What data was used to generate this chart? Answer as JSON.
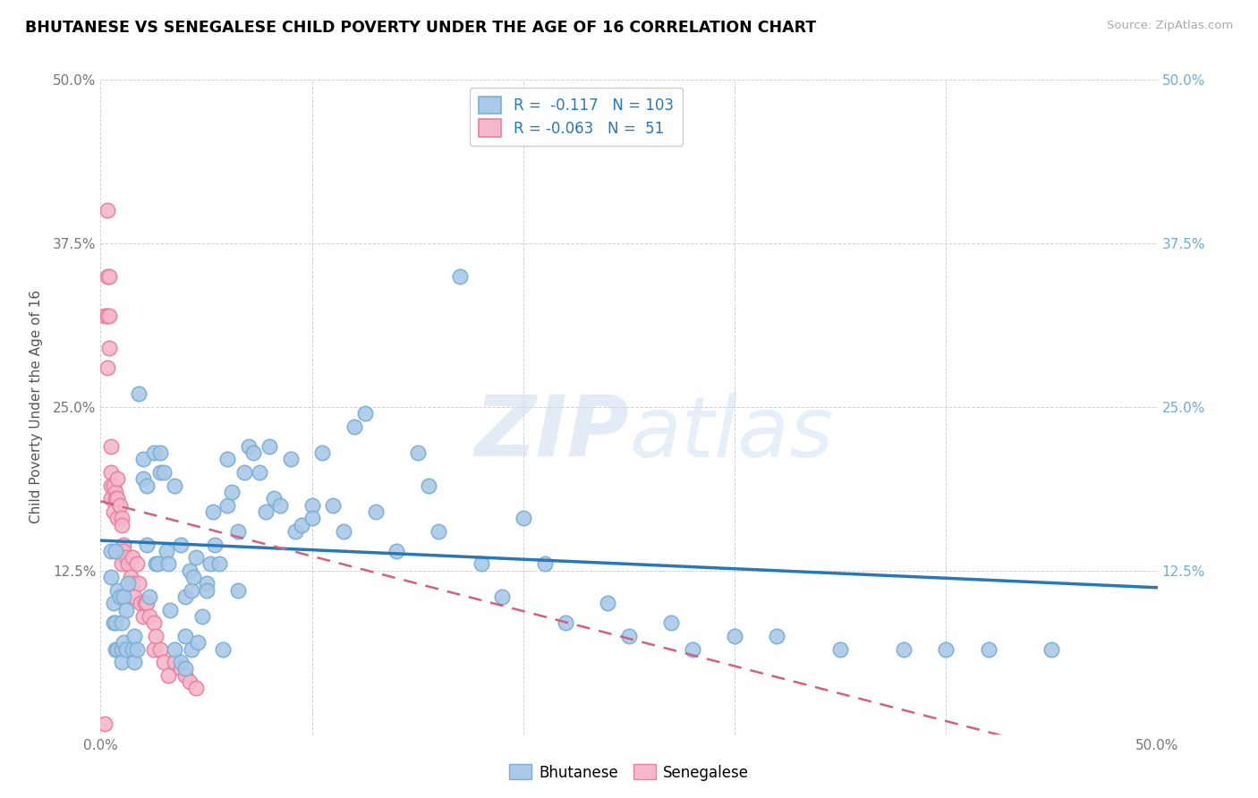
{
  "title": "BHUTANESE VS SENEGALESE CHILD POVERTY UNDER THE AGE OF 16 CORRELATION CHART",
  "source": "Source: ZipAtlas.com",
  "ylabel": "Child Poverty Under the Age of 16",
  "xlim": [
    0.0,
    0.5
  ],
  "ylim": [
    0.0,
    0.5
  ],
  "xticks": [
    0.0,
    0.1,
    0.2,
    0.3,
    0.4,
    0.5
  ],
  "yticks": [
    0.0,
    0.125,
    0.25,
    0.375,
    0.5
  ],
  "xticklabels": [
    "0.0%",
    "",
    "",
    "",
    "",
    "50.0%"
  ],
  "yticklabels_left": [
    "",
    "12.5%",
    "25.0%",
    "37.5%",
    "50.0%"
  ],
  "yticklabels_right": [
    "",
    "12.5%",
    "25.0%",
    "37.5%",
    "50.0%"
  ],
  "blue_color": "#aac9e8",
  "blue_edge_color": "#7aafd4",
  "pink_color": "#f5b8cb",
  "pink_edge_color": "#e8809e",
  "trendline_blue": "#2878b8",
  "trendline_pink": "#d4607a",
  "legend_r_blue": "-0.117",
  "legend_n_blue": "103",
  "legend_r_pink": "-0.063",
  "legend_n_pink": "51",
  "blue_slope": -0.072,
  "blue_intercept": 0.148,
  "pink_slope": -0.42,
  "pink_intercept": 0.178,
  "watermark": "ZIPatlas",
  "blue_scatter_x": [
    0.005,
    0.005,
    0.006,
    0.006,
    0.007,
    0.007,
    0.007,
    0.008,
    0.008,
    0.009,
    0.01,
    0.01,
    0.01,
    0.011,
    0.011,
    0.012,
    0.012,
    0.013,
    0.015,
    0.016,
    0.016,
    0.017,
    0.018,
    0.02,
    0.02,
    0.022,
    0.022,
    0.023,
    0.025,
    0.026,
    0.027,
    0.028,
    0.028,
    0.03,
    0.031,
    0.032,
    0.033,
    0.035,
    0.035,
    0.038,
    0.038,
    0.04,
    0.04,
    0.04,
    0.042,
    0.043,
    0.043,
    0.044,
    0.045,
    0.046,
    0.048,
    0.05,
    0.05,
    0.052,
    0.053,
    0.054,
    0.056,
    0.058,
    0.06,
    0.06,
    0.062,
    0.065,
    0.065,
    0.068,
    0.07,
    0.072,
    0.075,
    0.078,
    0.08,
    0.082,
    0.085,
    0.09,
    0.092,
    0.095,
    0.1,
    0.1,
    0.105,
    0.11,
    0.115,
    0.12,
    0.125,
    0.13,
    0.14,
    0.15,
    0.155,
    0.16,
    0.17,
    0.18,
    0.19,
    0.2,
    0.21,
    0.22,
    0.24,
    0.25,
    0.27,
    0.28,
    0.3,
    0.32,
    0.35,
    0.38,
    0.4,
    0.42,
    0.45
  ],
  "blue_scatter_y": [
    0.14,
    0.12,
    0.1,
    0.085,
    0.14,
    0.085,
    0.065,
    0.11,
    0.065,
    0.105,
    0.085,
    0.065,
    0.055,
    0.105,
    0.07,
    0.095,
    0.065,
    0.115,
    0.065,
    0.075,
    0.055,
    0.065,
    0.26,
    0.21,
    0.195,
    0.145,
    0.19,
    0.105,
    0.215,
    0.13,
    0.13,
    0.215,
    0.2,
    0.2,
    0.14,
    0.13,
    0.095,
    0.065,
    0.19,
    0.055,
    0.145,
    0.075,
    0.05,
    0.105,
    0.125,
    0.065,
    0.11,
    0.12,
    0.135,
    0.07,
    0.09,
    0.115,
    0.11,
    0.13,
    0.17,
    0.145,
    0.13,
    0.065,
    0.175,
    0.21,
    0.185,
    0.155,
    0.11,
    0.2,
    0.22,
    0.215,
    0.2,
    0.17,
    0.22,
    0.18,
    0.175,
    0.21,
    0.155,
    0.16,
    0.175,
    0.165,
    0.215,
    0.175,
    0.155,
    0.235,
    0.245,
    0.17,
    0.14,
    0.215,
    0.19,
    0.155,
    0.35,
    0.13,
    0.105,
    0.165,
    0.13,
    0.085,
    0.1,
    0.075,
    0.085,
    0.065,
    0.075,
    0.075,
    0.065,
    0.065,
    0.065,
    0.065,
    0.065
  ],
  "pink_scatter_x": [
    0.002,
    0.002,
    0.003,
    0.003,
    0.003,
    0.003,
    0.004,
    0.004,
    0.004,
    0.005,
    0.005,
    0.005,
    0.005,
    0.006,
    0.006,
    0.007,
    0.007,
    0.008,
    0.008,
    0.008,
    0.008,
    0.009,
    0.01,
    0.01,
    0.01,
    0.011,
    0.011,
    0.012,
    0.013,
    0.014,
    0.015,
    0.015,
    0.016,
    0.017,
    0.018,
    0.019,
    0.02,
    0.021,
    0.022,
    0.023,
    0.025,
    0.025,
    0.026,
    0.028,
    0.03,
    0.032,
    0.035,
    0.038,
    0.04,
    0.042,
    0.045
  ],
  "pink_scatter_y": [
    0.32,
    0.008,
    0.4,
    0.35,
    0.32,
    0.28,
    0.35,
    0.32,
    0.295,
    0.22,
    0.2,
    0.19,
    0.18,
    0.19,
    0.17,
    0.185,
    0.18,
    0.195,
    0.18,
    0.165,
    0.14,
    0.175,
    0.165,
    0.16,
    0.13,
    0.145,
    0.14,
    0.135,
    0.13,
    0.12,
    0.135,
    0.115,
    0.105,
    0.13,
    0.115,
    0.1,
    0.09,
    0.1,
    0.1,
    0.09,
    0.085,
    0.065,
    0.075,
    0.065,
    0.055,
    0.045,
    0.055,
    0.05,
    0.045,
    0.04,
    0.035
  ]
}
